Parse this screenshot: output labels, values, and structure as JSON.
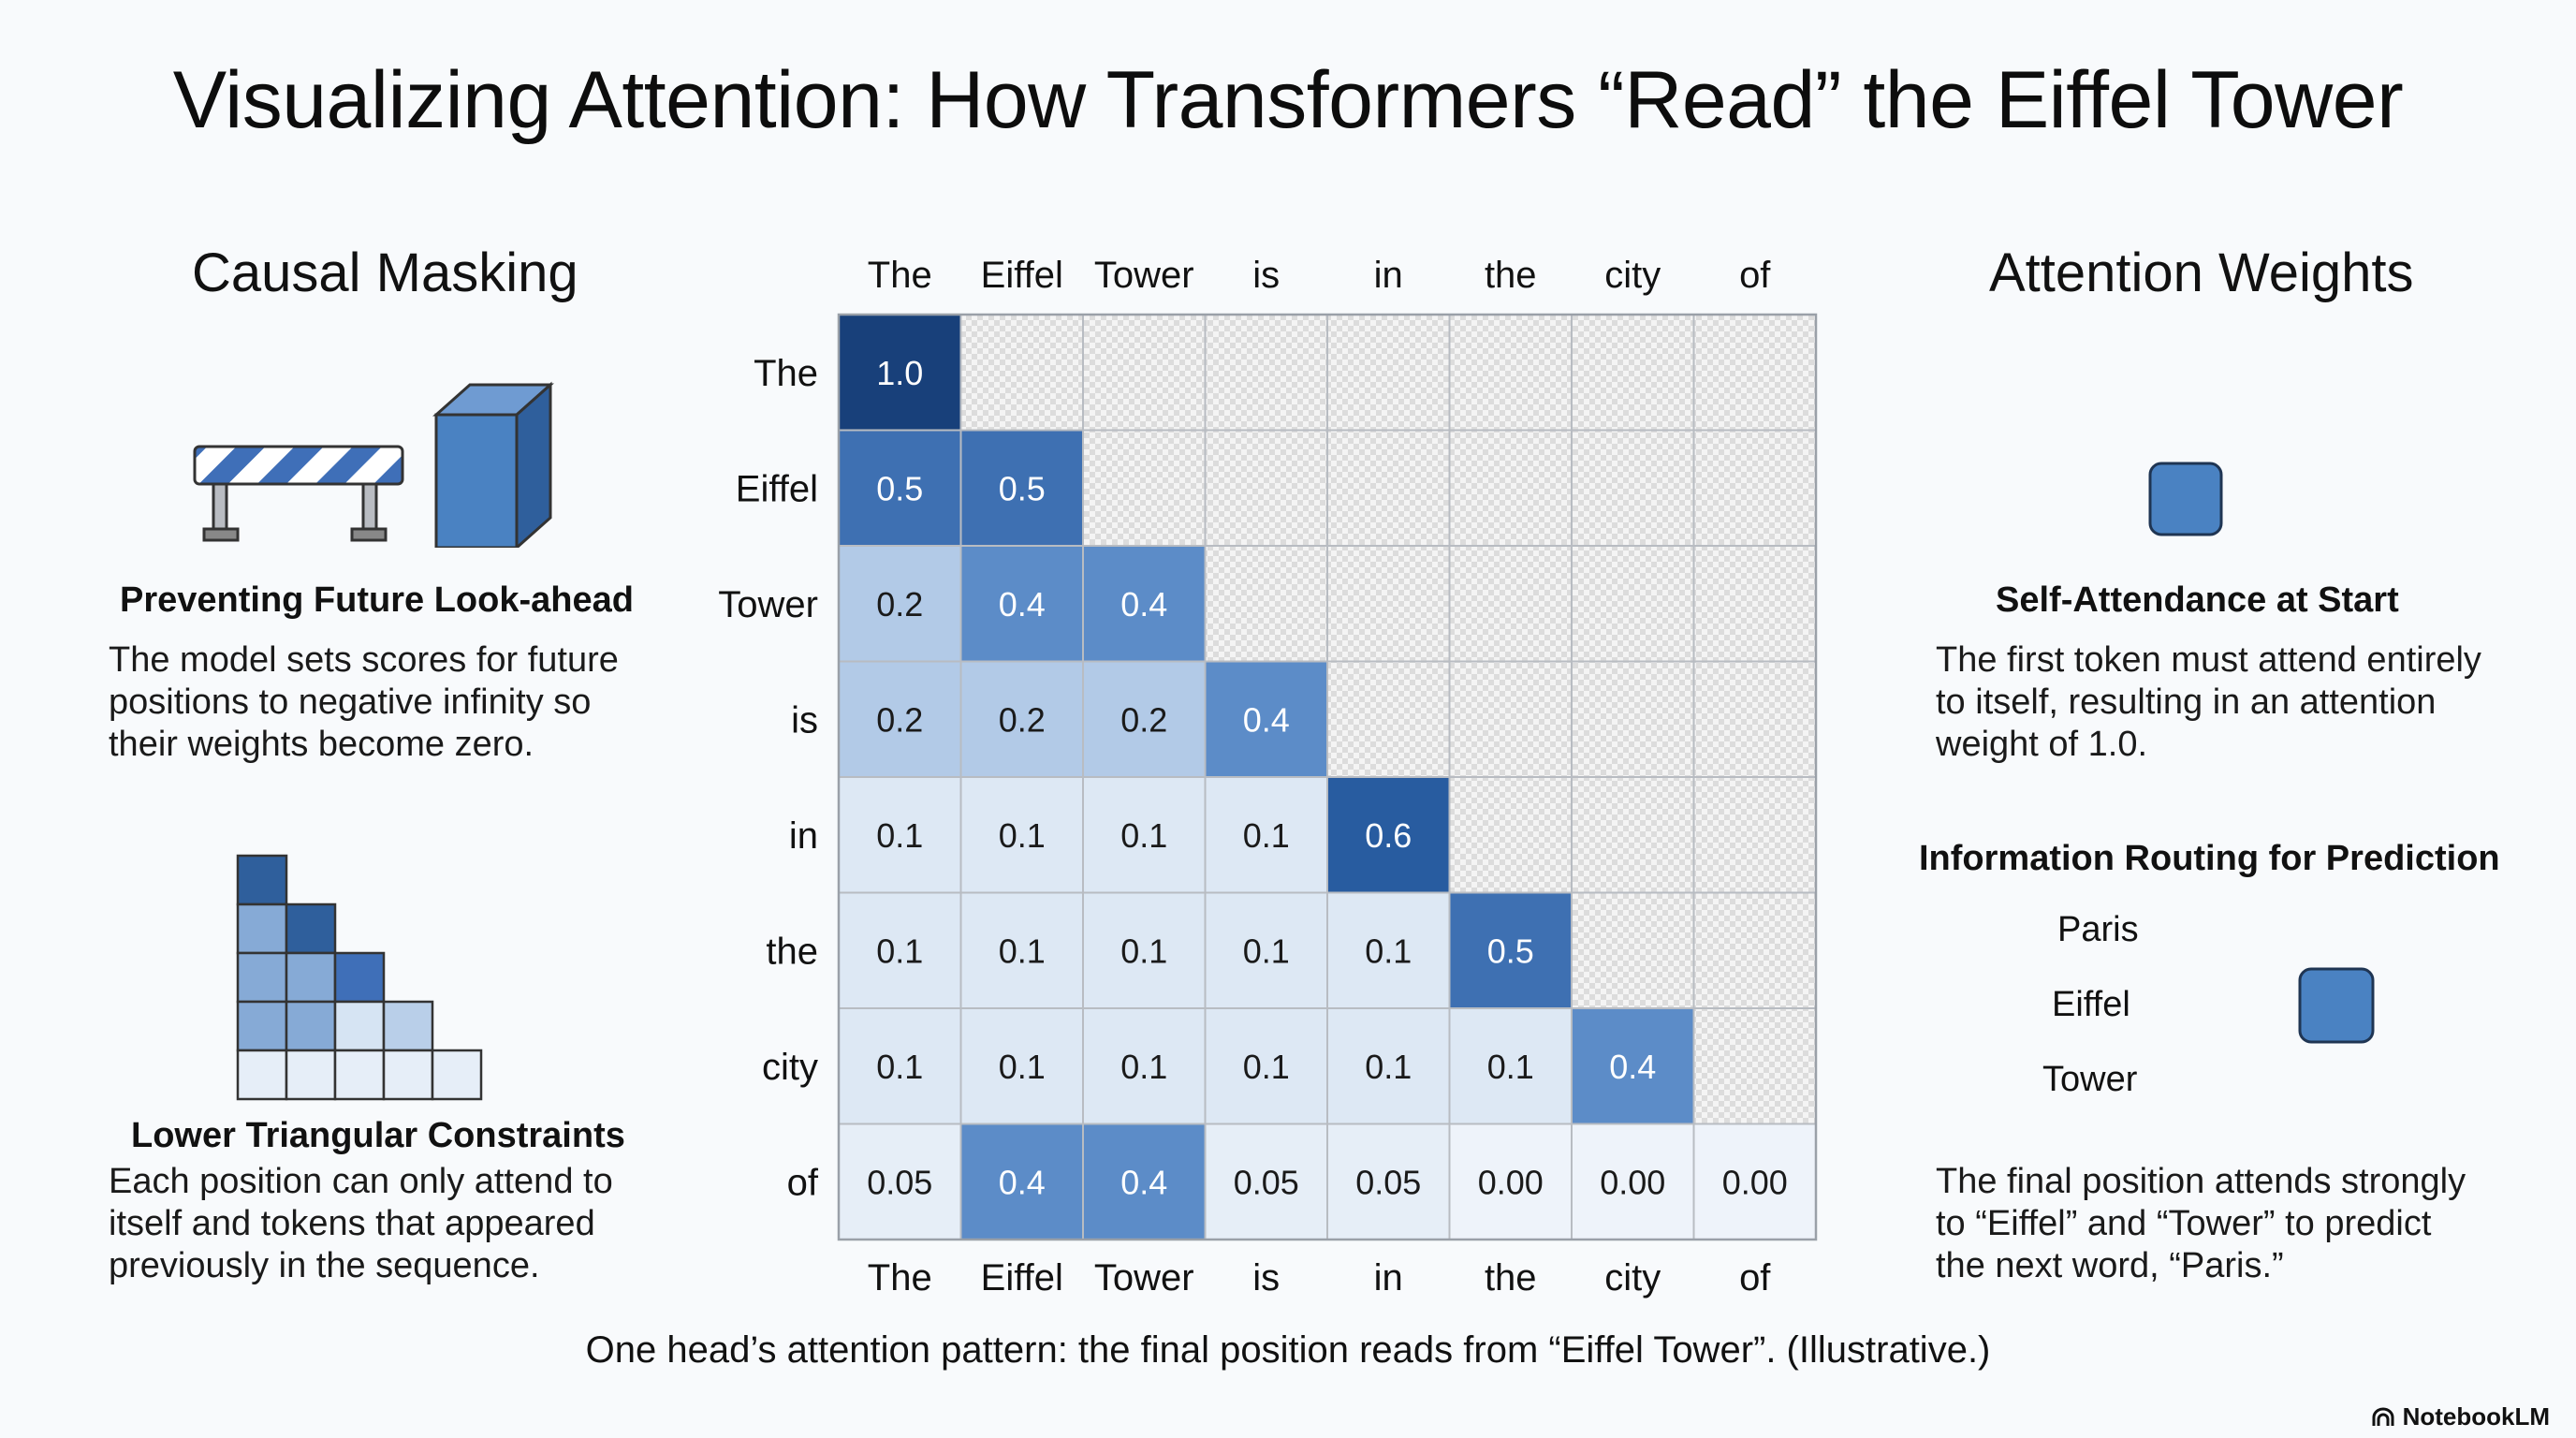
{
  "title": "Visualizing Attention: How Transformers “Read” the Eiffel Tower",
  "left": {
    "heading": "Causal Masking",
    "block1": {
      "title": "Preventing Future Look-ahead",
      "lines": [
        "The model sets scores for future",
        "positions to negative infinity so",
        "their weights become zero."
      ]
    },
    "block2": {
      "title": "Lower Triangular Constraints",
      "lines": [
        "Each position can only attend to",
        "itself and tokens that appeared",
        "previously in the sequence."
      ]
    }
  },
  "right": {
    "heading": "Attention Weights",
    "block1": {
      "title": "Self-Attendance at Start",
      "lines": [
        "The first token must attend entirely",
        "to itself, resulting in an attention",
        "weight of 1.0."
      ]
    },
    "block2": {
      "title": "Information Routing for Prediction",
      "route_labels": [
        "Paris",
        "Eiffel",
        "Tower"
      ],
      "lines": [
        "The final position attends strongly",
        "to “Eiffel” and “Tower” to predict",
        "the next word, “Paris.”"
      ]
    }
  },
  "chart_data": {
    "type": "heatmap",
    "tokens": [
      "The",
      "Eiffel",
      "Tower",
      "is",
      "in",
      "the",
      "city",
      "of"
    ],
    "rows": [
      [
        "1.0",
        null,
        null,
        null,
        null,
        null,
        null,
        null
      ],
      [
        "0.5",
        "0.5",
        null,
        null,
        null,
        null,
        null,
        null
      ],
      [
        "0.2",
        "0.4",
        "0.4",
        null,
        null,
        null,
        null,
        null
      ],
      [
        "0.2",
        "0.2",
        "0.2",
        "0.4",
        null,
        null,
        null,
        null
      ],
      [
        "0.1",
        "0.1",
        "0.1",
        "0.1",
        "0.6",
        null,
        null,
        null
      ],
      [
        "0.1",
        "0.1",
        "0.1",
        "0.1",
        "0.1",
        "0.5",
        null,
        null
      ],
      [
        "0.1",
        "0.1",
        "0.1",
        "0.1",
        "0.1",
        "0.1",
        "0.4",
        null
      ],
      [
        "0.05",
        "0.4",
        "0.4",
        "0.05",
        "0.05",
        "0.00",
        "0.00",
        "0.00"
      ]
    ],
    "masked": "upper-triangle (checkerboard)"
  },
  "caption": "One head’s attention pattern: the final position reads from “Eiffel Tower”. (Illustrative.)",
  "brand": "NotebookLM",
  "colors": {
    "dark_blue": "#1d4f8c",
    "mid_blue": "#4a82c2",
    "light_blue": "#dde8f4",
    "masked": "#e6e6e6"
  }
}
